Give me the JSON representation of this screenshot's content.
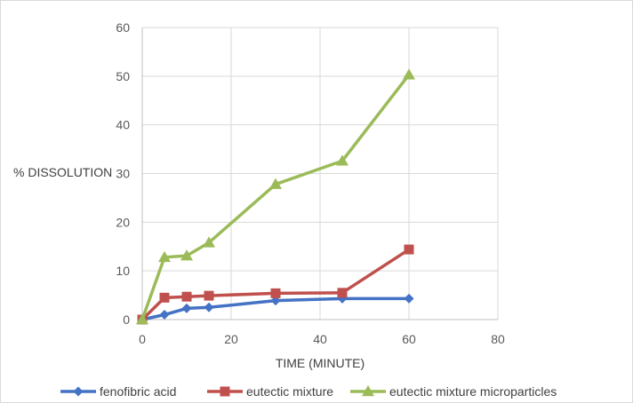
{
  "chart_data": {
    "type": "line",
    "xlabel": "TIME (MINUTE)",
    "ylabel": "% DISSOLUTION",
    "xlim": [
      0,
      80
    ],
    "ylim": [
      0,
      60
    ],
    "xticks": [
      0,
      20,
      40,
      60,
      80
    ],
    "yticks": [
      0,
      10,
      20,
      30,
      40,
      50,
      60
    ],
    "grid": true,
    "legend_position": "bottom",
    "series": [
      {
        "name": "fenofibric acid",
        "color": "#4472c4",
        "marker": "diamond",
        "x": [
          0,
          5,
          10,
          15,
          30,
          45,
          60
        ],
        "y": [
          0,
          1,
          2.3,
          2.5,
          3.9,
          4.3,
          4.3
        ]
      },
      {
        "name": "eutectic mixture",
        "color": "#c0504d",
        "marker": "square",
        "x": [
          0,
          5,
          10,
          15,
          30,
          45,
          60
        ],
        "y": [
          0,
          4.5,
          4.7,
          4.9,
          5.4,
          5.5,
          14.4
        ]
      },
      {
        "name": "eutectic mixture microparticles",
        "color": "#9bbb59",
        "marker": "triangle",
        "x": [
          0,
          5,
          10,
          15,
          30,
          45,
          60
        ],
        "y": [
          0,
          12.8,
          13.1,
          15.8,
          27.8,
          32.6,
          50.3
        ]
      }
    ]
  }
}
